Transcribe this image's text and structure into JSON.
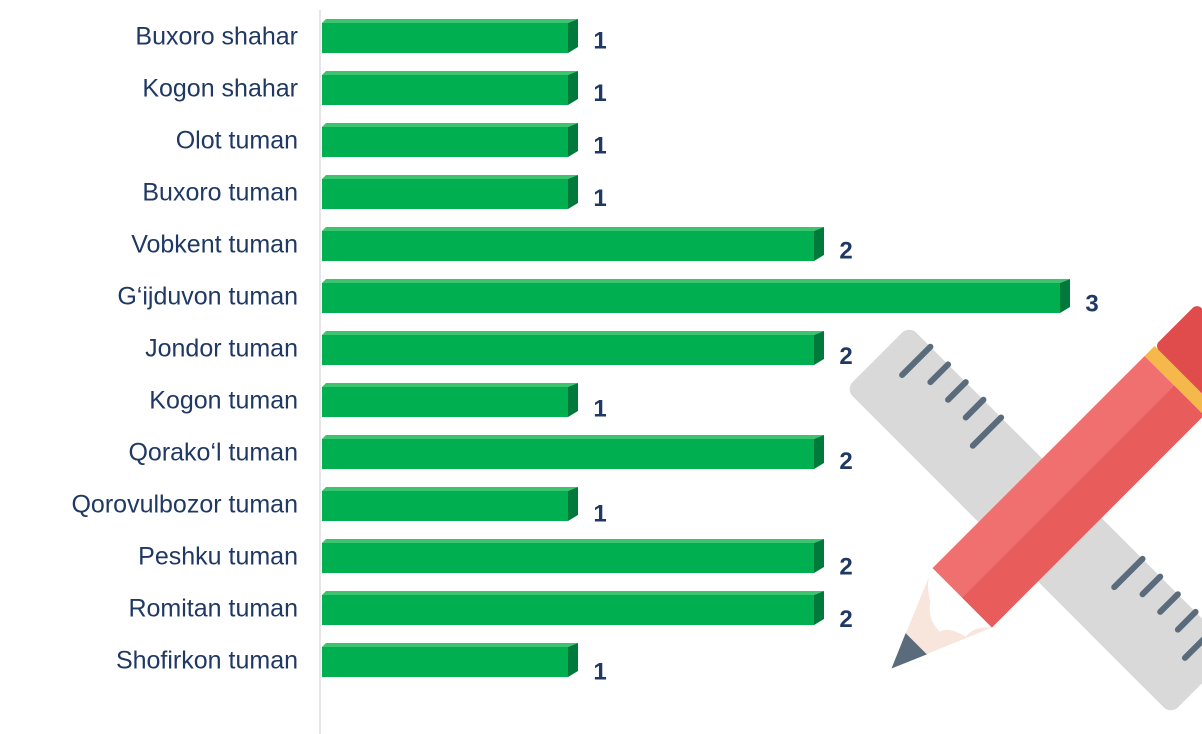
{
  "chart_data": {
    "type": "bar",
    "orientation": "horizontal",
    "categories": [
      "Buxoro shahar",
      "Kogon shahar",
      "Olot tuman",
      "Buxoro tuman",
      "Vobkent tuman",
      "G‘ijduvon tuman",
      "Jondor tuman",
      "Kogon tuman",
      "Qorako‘l tuman",
      "Qorovulbozor tuman",
      "Peshku tuman",
      "Romitan tuman",
      "Shofirkon tuman"
    ],
    "values": [
      1,
      1,
      1,
      1,
      2,
      3,
      2,
      1,
      2,
      1,
      2,
      2,
      1
    ],
    "color": "#00b050"
  }
}
